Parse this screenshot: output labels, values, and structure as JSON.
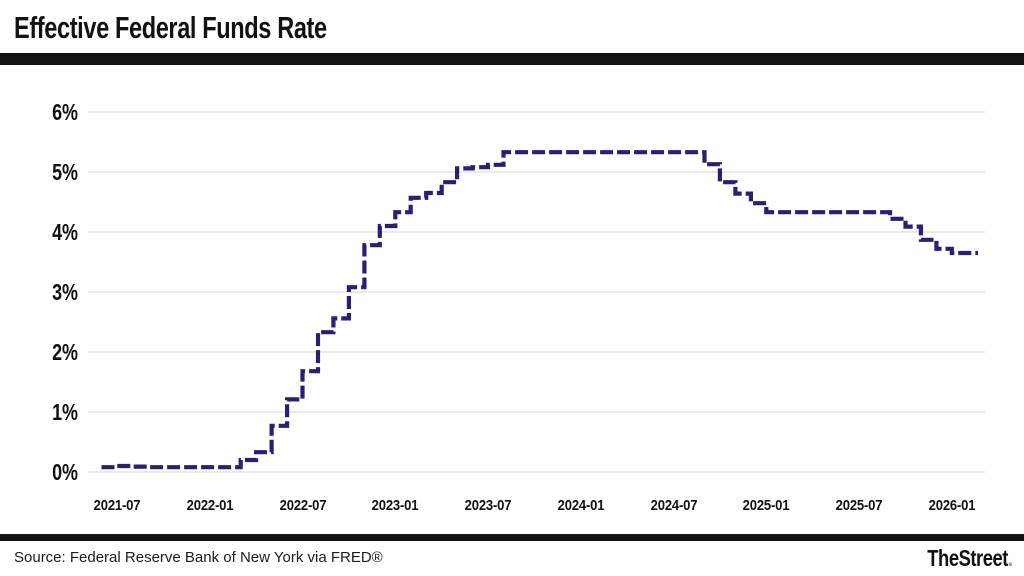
{
  "header": {
    "title": "Effective Federal Funds Rate"
  },
  "footer": {
    "source": "Source: Federal Reserve Bank of New York via FRED®",
    "brand": "TheStreet",
    "brand_dot": "."
  },
  "colors": {
    "line": "#2d1e73",
    "grid": "#e3e3e3",
    "divider": "#121212",
    "text": "#111111",
    "brand_dot": "#9a9a9a"
  },
  "chart_data": {
    "type": "line",
    "subtype": "step",
    "dashed": true,
    "title": "Effective Federal Funds Rate",
    "xlabel": "",
    "ylabel": "",
    "ylim": [
      0,
      6
    ],
    "grid": "horizontal",
    "legend": "none",
    "y_axis": {
      "tick_labels": [
        "0%",
        "1%",
        "2%",
        "3%",
        "4%",
        "5%",
        "6%"
      ],
      "unit": "percent"
    },
    "x_axis": {
      "tick_labels": [
        "2021-07",
        "2022-01",
        "2022-07",
        "2023-01",
        "2023-07",
        "2024-01",
        "2024-07",
        "2025-01",
        "2025-07",
        "2026-01"
      ]
    },
    "series": [
      {
        "name": "Effective Federal Funds Rate",
        "unit": "%",
        "points": [
          [
            "2021-06",
            0.08
          ],
          [
            "2021-07",
            0.1
          ],
          [
            "2021-08",
            0.09
          ],
          [
            "2021-09",
            0.08
          ],
          [
            "2021-10",
            0.08
          ],
          [
            "2021-11",
            0.08
          ],
          [
            "2021-12",
            0.08
          ],
          [
            "2022-01",
            0.08
          ],
          [
            "2022-02",
            0.08
          ],
          [
            "2022-03",
            0.2
          ],
          [
            "2022-04",
            0.33
          ],
          [
            "2022-05",
            0.77
          ],
          [
            "2022-06",
            1.21
          ],
          [
            "2022-07",
            1.68
          ],
          [
            "2022-08",
            2.33
          ],
          [
            "2022-09",
            2.56
          ],
          [
            "2022-10",
            3.08
          ],
          [
            "2022-11",
            3.78
          ],
          [
            "2022-12",
            4.1
          ],
          [
            "2023-01",
            4.33
          ],
          [
            "2023-02",
            4.57
          ],
          [
            "2023-03",
            4.65
          ],
          [
            "2023-04",
            4.83
          ],
          [
            "2023-05",
            5.06
          ],
          [
            "2023-06",
            5.08
          ],
          [
            "2023-07",
            5.12
          ],
          [
            "2023-08",
            5.33
          ],
          [
            "2023-09",
            5.33
          ],
          [
            "2023-10",
            5.33
          ],
          [
            "2023-11",
            5.33
          ],
          [
            "2023-12",
            5.33
          ],
          [
            "2024-01",
            5.33
          ],
          [
            "2024-02",
            5.33
          ],
          [
            "2024-03",
            5.33
          ],
          [
            "2024-04",
            5.33
          ],
          [
            "2024-05",
            5.33
          ],
          [
            "2024-06",
            5.33
          ],
          [
            "2024-07",
            5.33
          ],
          [
            "2024-08",
            5.33
          ],
          [
            "2024-09",
            5.13
          ],
          [
            "2024-10",
            4.83
          ],
          [
            "2024-11",
            4.64
          ],
          [
            "2024-12",
            4.48
          ],
          [
            "2025-01",
            4.33
          ],
          [
            "2025-02",
            4.33
          ],
          [
            "2025-03",
            4.33
          ],
          [
            "2025-04",
            4.33
          ],
          [
            "2025-05",
            4.33
          ],
          [
            "2025-06",
            4.33
          ],
          [
            "2025-07",
            4.33
          ],
          [
            "2025-08",
            4.33
          ],
          [
            "2025-09",
            4.22
          ],
          [
            "2025-10",
            4.09
          ],
          [
            "2025-11",
            3.87
          ],
          [
            "2025-12",
            3.72
          ],
          [
            "2026-01",
            3.65
          ],
          [
            "2026-02",
            3.65
          ]
        ]
      }
    ]
  }
}
